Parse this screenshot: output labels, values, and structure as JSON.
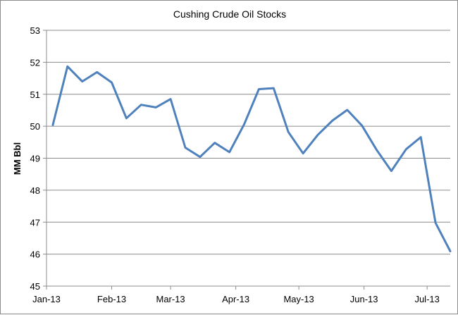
{
  "chart_data": {
    "type": "line",
    "title": "Cushing Crude Oil Stocks",
    "xlabel": "",
    "ylabel": "MM Bbl",
    "ylim": [
      45,
      53
    ],
    "y_ticks": [
      "45",
      "46",
      "47",
      "48",
      "49",
      "50",
      "51",
      "52",
      "53"
    ],
    "x_ticks": [
      "Jan-13",
      "Feb-13",
      "Mar-13",
      "Apr-13",
      "May-13",
      "Jun-13",
      "Jul-13"
    ],
    "x_tick_dates": [
      "2013-01-01",
      "2013-02-01",
      "2013-03-01",
      "2013-04-01",
      "2013-05-01",
      "2013-06-01",
      "2013-07-01"
    ],
    "x_range": [
      "2013-01-01",
      "2013-07-12"
    ],
    "grid": true,
    "legend": "none",
    "series_color": "#4F81BD",
    "series": [
      {
        "x": [
          "2013-01-04",
          "2013-01-11",
          "2013-01-18",
          "2013-01-25",
          "2013-02-01",
          "2013-02-08",
          "2013-02-15",
          "2013-02-22",
          "2013-03-01",
          "2013-03-08",
          "2013-03-15",
          "2013-03-22",
          "2013-03-29",
          "2013-04-05",
          "2013-04-12",
          "2013-04-19",
          "2013-04-26",
          "2013-05-03",
          "2013-05-10",
          "2013-05-17",
          "2013-05-24",
          "2013-05-31",
          "2013-06-07",
          "2013-06-14",
          "2013-06-21",
          "2013-06-28",
          "2013-07-05",
          "2013-07-12"
        ],
        "values": [
          50.04,
          51.87,
          51.4,
          51.69,
          51.37,
          50.25,
          50.67,
          50.59,
          50.85,
          49.33,
          49.04,
          49.48,
          49.19,
          50.06,
          51.16,
          51.19,
          49.82,
          49.15,
          49.73,
          50.18,
          50.51,
          50.02,
          49.26,
          48.6,
          49.28,
          49.66,
          46.98,
          46.09
        ]
      }
    ]
  }
}
